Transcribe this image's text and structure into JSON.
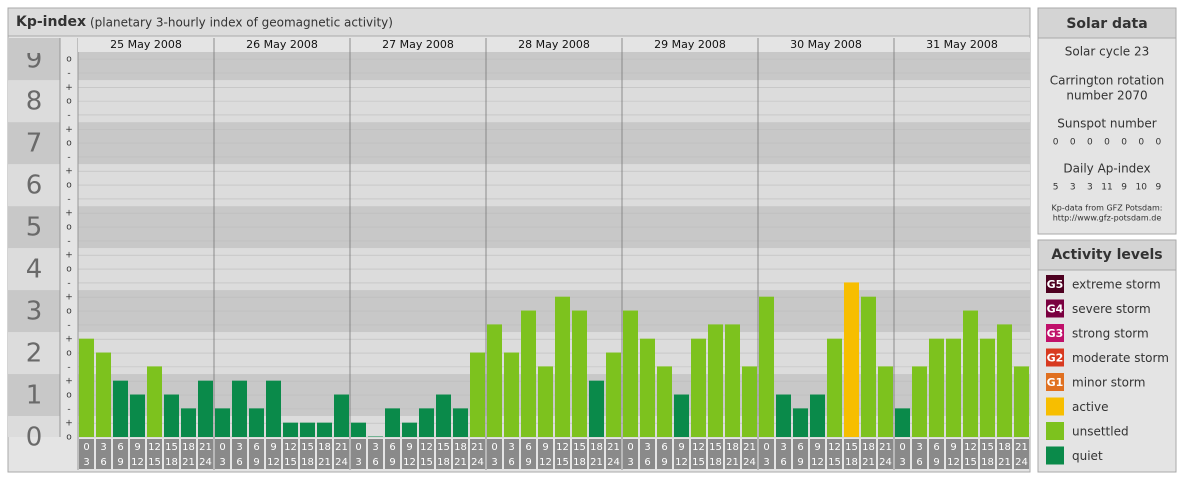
{
  "chart_data": {
    "type": "bar",
    "title": "Kp-index",
    "subtitle": "(planetary 3-hourly index of geomagnetic activity)",
    "days": [
      "25 May 2008",
      "26 May 2008",
      "27 May 2008",
      "28 May 2008",
      "29 May 2008",
      "30 May 2008",
      "31 May 2008"
    ],
    "intervals": [
      {
        "from": "0",
        "to": "3"
      },
      {
        "from": "3",
        "to": "6"
      },
      {
        "from": "6",
        "to": "9"
      },
      {
        "from": "9",
        "to": "12"
      },
      {
        "from": "12",
        "to": "15"
      },
      {
        "from": "15",
        "to": "18"
      },
      {
        "from": "18",
        "to": "21"
      },
      {
        "from": "21",
        "to": "24"
      }
    ],
    "values": [
      [
        2.33,
        2,
        1.33,
        1,
        1.67,
        1,
        0.67,
        1.33
      ],
      [
        0.67,
        1.33,
        0.67,
        1.33,
        0.33,
        0.33,
        0.33,
        1
      ],
      [
        0.33,
        0,
        0.67,
        0.33,
        0.67,
        1,
        0.67,
        2
      ],
      [
        2.67,
        2,
        3,
        1.67,
        3.33,
        3,
        1.33,
        2
      ],
      [
        3,
        2.33,
        1.67,
        1,
        2.33,
        2.67,
        2.67,
        1.67
      ],
      [
        3.33,
        1,
        0.67,
        1,
        2.33,
        3.67,
        3.33,
        1.67
      ],
      [
        0.67,
        1.67,
        2.33,
        2.33,
        3,
        2.33,
        2.67,
        1.67
      ]
    ],
    "colors": [
      [
        "#7dc21e",
        "#7dc21e",
        "#0a8a4a",
        "#0a8a4a",
        "#7dc21e",
        "#0a8a4a",
        "#0a8a4a",
        "#0a8a4a"
      ],
      [
        "#0a8a4a",
        "#0a8a4a",
        "#0a8a4a",
        "#0a8a4a",
        "#0a8a4a",
        "#0a8a4a",
        "#0a8a4a",
        "#0a8a4a"
      ],
      [
        "#0a8a4a",
        "#0a8a4a",
        "#0a8a4a",
        "#0a8a4a",
        "#0a8a4a",
        "#0a8a4a",
        "#0a8a4a",
        "#7dc21e"
      ],
      [
        "#7dc21e",
        "#7dc21e",
        "#7dc21e",
        "#7dc21e",
        "#7dc21e",
        "#7dc21e",
        "#0a8a4a",
        "#7dc21e"
      ],
      [
        "#7dc21e",
        "#7dc21e",
        "#7dc21e",
        "#0a8a4a",
        "#7dc21e",
        "#7dc21e",
        "#7dc21e",
        "#7dc21e"
      ],
      [
        "#7dc21e",
        "#0a8a4a",
        "#0a8a4a",
        "#0a8a4a",
        "#7dc21e",
        "#f7be00",
        "#7dc21e",
        "#7dc21e"
      ],
      [
        "#0a8a4a",
        "#7dc21e",
        "#7dc21e",
        "#7dc21e",
        "#7dc21e",
        "#7dc21e",
        "#7dc21e",
        "#7dc21e"
      ]
    ],
    "ylim": [
      0,
      9.17
    ],
    "yticks": [
      0,
      1,
      2,
      3,
      4,
      5,
      6,
      7,
      8,
      9
    ],
    "minor_yticks": [
      {
        "value": 0,
        "label": "o"
      },
      {
        "value": 0.33,
        "label": "+"
      },
      {
        "value": 0.67,
        "label": "-"
      },
      {
        "value": 1,
        "label": "o"
      },
      {
        "value": 1.33,
        "label": "+"
      },
      {
        "value": 1.67,
        "label": "-"
      },
      {
        "value": 2,
        "label": "o"
      },
      {
        "value": 2.33,
        "label": "+"
      },
      {
        "value": 2.67,
        "label": "-"
      },
      {
        "value": 3,
        "label": "o"
      },
      {
        "value": 3.33,
        "label": "+"
      },
      {
        "value": 3.67,
        "label": "-"
      },
      {
        "value": 4,
        "label": "o"
      },
      {
        "value": 4.33,
        "label": "+"
      },
      {
        "value": 4.67,
        "label": "-"
      },
      {
        "value": 5,
        "label": "o"
      },
      {
        "value": 5.33,
        "label": "+"
      },
      {
        "value": 5.67,
        "label": "-"
      },
      {
        "value": 6,
        "label": "o"
      },
      {
        "value": 6.33,
        "label": "+"
      },
      {
        "value": 6.67,
        "label": "-"
      },
      {
        "value": 7,
        "label": "o"
      },
      {
        "value": 7.33,
        "label": "+"
      },
      {
        "value": 7.67,
        "label": "-"
      },
      {
        "value": 8,
        "label": "o"
      },
      {
        "value": 8.33,
        "label": "+"
      },
      {
        "value": 8.67,
        "label": "-"
      },
      {
        "value": 9,
        "label": "o"
      }
    ],
    "grid": true
  },
  "solar_data": {
    "title": "Solar data",
    "cycle": "Solar cycle 23",
    "carrington": [
      "Carrington rotation",
      "number 2070"
    ],
    "sunspot_title": "Sunspot number",
    "sunspot": [
      "0",
      "0",
      "0",
      "0",
      "0",
      "0",
      "0"
    ],
    "ap_title": "Daily Ap-index",
    "ap": [
      "5",
      "3",
      "3",
      "11",
      "9",
      "10",
      "9"
    ],
    "source": [
      "Kp-data from GFZ Potsdam:",
      "http://www.gfz-potsdam.de"
    ]
  },
  "activity_levels": {
    "title": "Activity levels",
    "items": [
      {
        "code": "G5",
        "name": "extreme storm",
        "color": "#4d0020"
      },
      {
        "code": "G4",
        "name": "severe storm",
        "color": "#7a0040"
      },
      {
        "code": "G3",
        "name": "strong storm",
        "color": "#c0106a"
      },
      {
        "code": "G2",
        "name": "moderate storm",
        "color": "#d83a20"
      },
      {
        "code": "G1",
        "name": "minor storm",
        "color": "#e07020"
      },
      {
        "code": "",
        "name": "active",
        "color": "#f7be00"
      },
      {
        "code": "",
        "name": "unsettled",
        "color": "#7dc21e"
      },
      {
        "code": "",
        "name": "quiet",
        "color": "#0a8a4a"
      }
    ]
  }
}
